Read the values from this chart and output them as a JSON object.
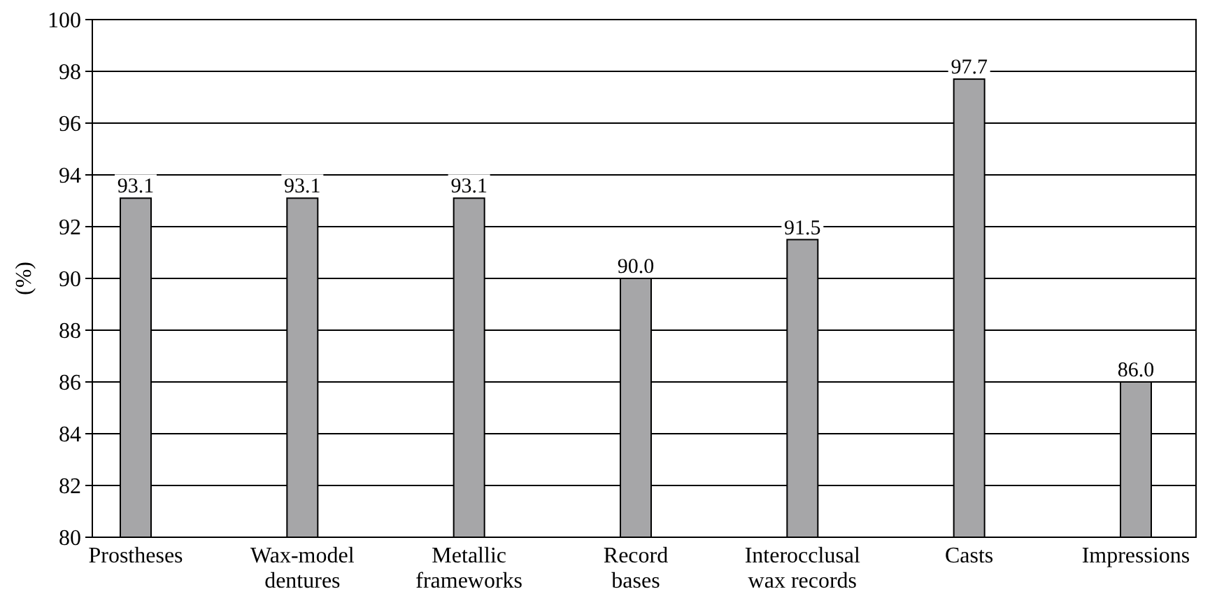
{
  "chart_data": {
    "type": "bar",
    "ylabel": "(%)",
    "categories": [
      "Prostheses",
      "Wax-model\ndentures",
      "Metallic\nframeworks",
      "Record\nbases",
      "Interocclusal\nwax records",
      "Casts",
      "Impressions"
    ],
    "values": [
      93.1,
      93.1,
      93.1,
      90.0,
      91.5,
      97.7,
      86.0
    ],
    "value_labels": [
      "93.1",
      "93.1",
      "93.1",
      "90.0",
      "91.5",
      "97.7",
      "86.0"
    ],
    "color": "#a6a6a8",
    "ylim": [
      80,
      100
    ],
    "yticks": [
      80,
      82,
      84,
      86,
      88,
      90,
      92,
      94,
      96,
      98,
      100
    ],
    "grid": "y"
  }
}
